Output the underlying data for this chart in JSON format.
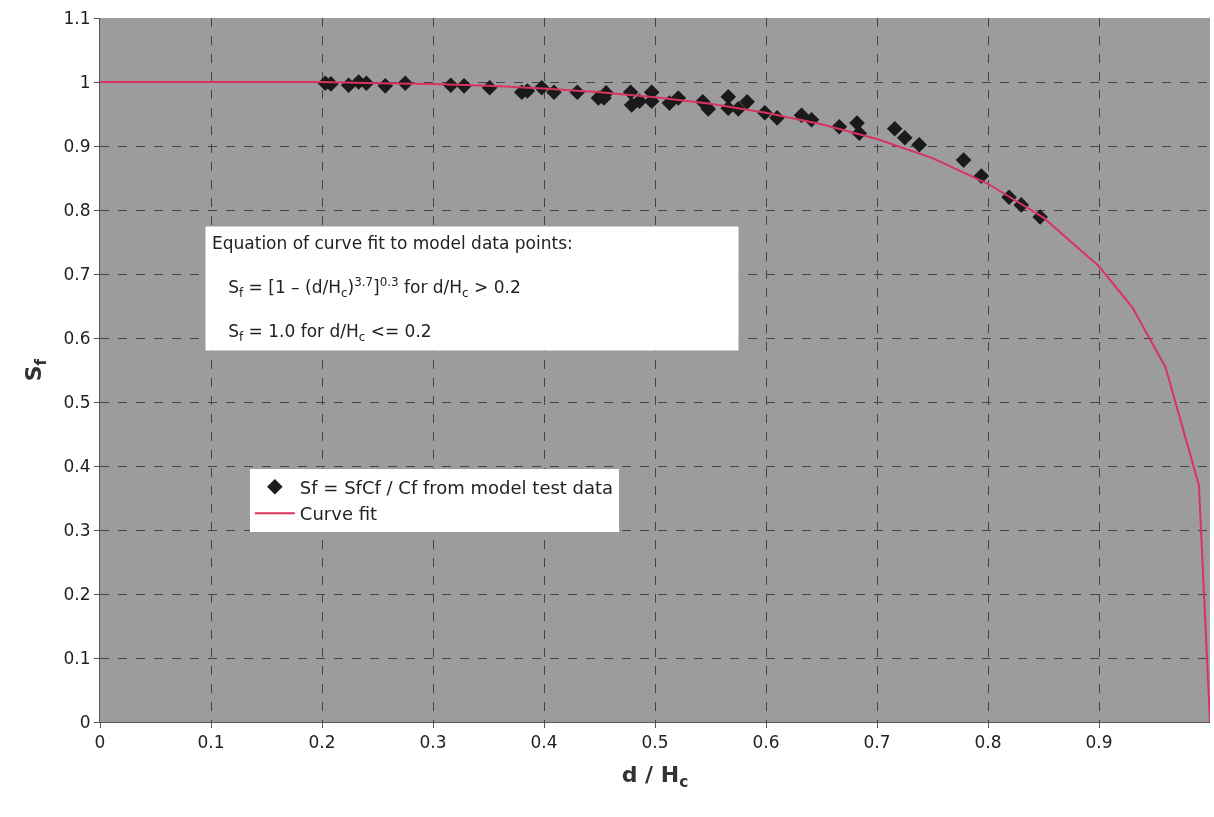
{
  "chart_data": {
    "type": "scatter",
    "xlabel": "d / H$_{c}$",
    "ylabel": "S$_{f}$",
    "xlim": [
      0,
      1.0
    ],
    "xticks": [
      0,
      0.1,
      0.2,
      0.3,
      0.4,
      0.5,
      0.6,
      0.7,
      0.8,
      0.9
    ],
    "ylim": [
      0,
      1.1
    ],
    "yticks": [
      0,
      0.1,
      0.2,
      0.3,
      0.4,
      0.5,
      0.6,
      0.7,
      0.8,
      0.9,
      1,
      1.1
    ],
    "grid": true,
    "legend": "left",
    "marker": "diamond",
    "annotations": [
      "Equation of curve fit to model data points:",
      "S$_{f}$ = [1 – (d/H$_{c}$)$^{3.7}$]$^{0.3}$ for d/H$_{c}$ > 0.2",
      "S$_{f}$ = 1.0 for d/H$_{c}$ <= 0.2"
    ],
    "series": [
      {
        "name": "Sf = SfCf / Cf from model test data",
        "color": "#1a1a1a",
        "x": [
          0.203,
          0.208,
          0.224,
          0.233,
          0.24,
          0.257,
          0.275,
          0.316,
          0.328,
          0.351,
          0.38,
          0.385,
          0.398,
          0.409,
          0.43,
          0.449,
          0.456,
          0.454,
          0.478,
          0.479,
          0.486,
          0.497,
          0.497,
          0.513,
          0.521,
          0.543,
          0.548,
          0.566,
          0.566,
          0.575,
          0.583,
          0.599,
          0.61,
          0.632,
          0.641,
          0.666,
          0.682,
          0.684,
          0.716,
          0.725,
          0.738,
          0.778,
          0.794,
          0.819,
          0.83,
          0.847
        ],
        "values": [
          0.998,
          0.997,
          0.995,
          1.0,
          0.998,
          0.994,
          0.998,
          0.995,
          0.994,
          0.991,
          0.984,
          0.986,
          0.991,
          0.984,
          0.984,
          0.975,
          0.983,
          0.975,
          0.984,
          0.964,
          0.97,
          0.984,
          0.97,
          0.967,
          0.975,
          0.969,
          0.958,
          0.977,
          0.959,
          0.958,
          0.969,
          0.952,
          0.944,
          0.948,
          0.941,
          0.93,
          0.936,
          0.92,
          0.927,
          0.913,
          0.902,
          0.878,
          0.853,
          0.82,
          0.808,
          0.789
        ]
      },
      {
        "name": "Curve fit",
        "type": "line",
        "color": "#d8345f",
        "marker": "none",
        "x": [
          0,
          0.1,
          0.2,
          0.25,
          0.3,
          0.35,
          0.4,
          0.45,
          0.5,
          0.55,
          0.6,
          0.65,
          0.7,
          0.75,
          0.8,
          0.85,
          0.9,
          0.93,
          0.96,
          0.99,
          1.0
        ],
        "values": [
          1,
          1,
          1,
          0.998,
          0.997,
          0.994,
          0.99,
          0.984,
          0.976,
          0.966,
          0.952,
          0.934,
          0.911,
          0.881,
          0.841,
          0.788,
          0.712,
          0.648,
          0.554,
          0.37,
          0
        ]
      }
    ]
  }
}
